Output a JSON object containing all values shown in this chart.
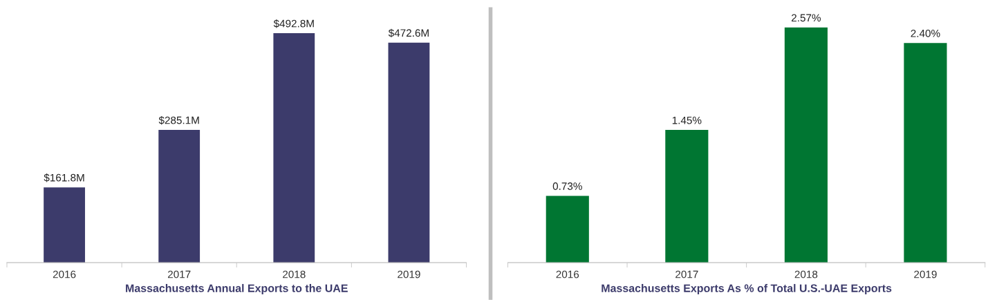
{
  "chart_data": [
    {
      "type": "bar",
      "xlabel": "Massachusetts Annual Exports to the UAE",
      "categories": [
        "2016",
        "2017",
        "2018",
        "2019"
      ],
      "values": [
        161.8,
        285.1,
        492.8,
        472.6
      ],
      "value_labels": [
        "$161.8M",
        "$285.1M",
        "$492.8M",
        "$472.6M"
      ],
      "color": "#3c3b6b"
    },
    {
      "type": "bar",
      "xlabel": "Massachusetts Exports As % of Total U.S.-UAE Exports",
      "categories": [
        "2016",
        "2017",
        "2018",
        "2019"
      ],
      "values": [
        0.73,
        1.45,
        2.57,
        2.4
      ],
      "value_labels": [
        "0.73%",
        "1.45%",
        "2.57%",
        "2.40%"
      ],
      "color": "#007632"
    }
  ]
}
